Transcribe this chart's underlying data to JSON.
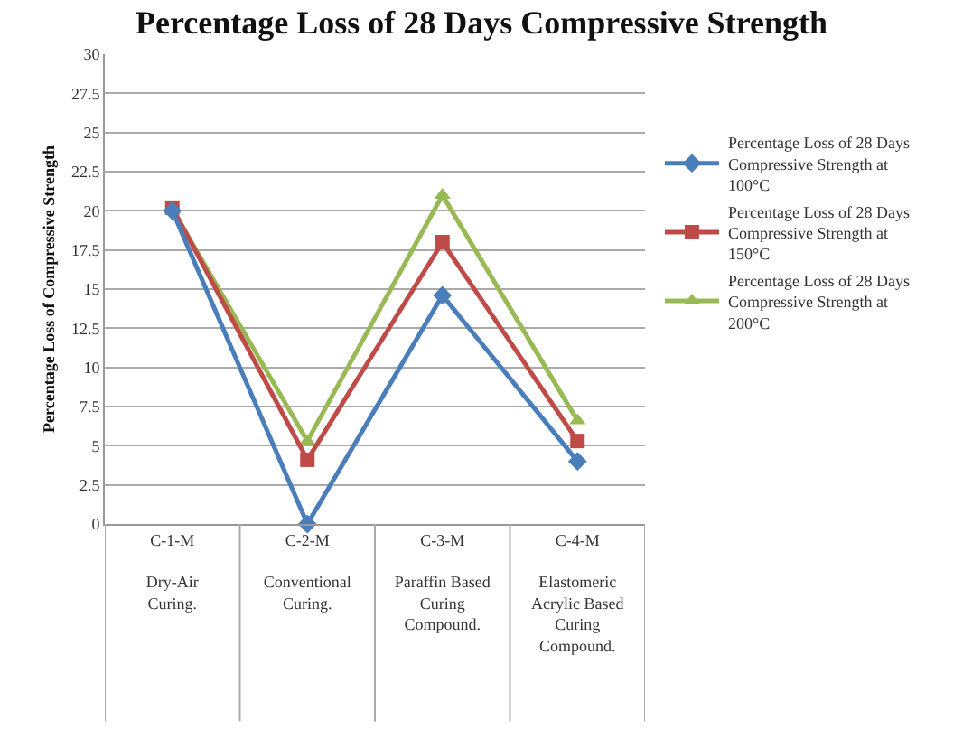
{
  "chart_data": {
    "type": "line",
    "title": "Percentage Loss of 28 Days Compressive Strength",
    "ylabel": "Percentage Loss of Compressive Strength",
    "categories": [
      "C-1-M\n\nDry-Air\nCuring.",
      "C-2-M\n\nConventional\nCuring.",
      "C-3-M\n\nParaffin Based\nCuring\nCompound.",
      "C-4-M\n\nElastomeric\nAcrylic Based\nCuring\nCompound."
    ],
    "series": [
      {
        "name": "Percentage Loss of 28 Days Compressive Strength at 100°C",
        "color": "#4a7ebb",
        "marker": "diamond",
        "values": [
          20,
          0,
          14.6,
          4
        ]
      },
      {
        "name": "Percentage Loss of 28 Days Compressive Strength at 150°C",
        "color": "#be4b48",
        "marker": "square",
        "values": [
          20.2,
          4.1,
          18,
          5.3
        ]
      },
      {
        "name": "Percentage Loss of 28 Days Compressive Strength at 200°C",
        "color": "#98b954",
        "marker": "triangle",
        "values": [
          20.1,
          5.3,
          21,
          6.6
        ]
      }
    ],
    "ylim": [
      0,
      30
    ],
    "yticks": [
      0,
      2.5,
      5,
      7.5,
      10,
      12.5,
      15,
      17.5,
      20,
      22.5,
      25,
      27.5,
      30
    ],
    "grid": "y",
    "legend": "right",
    "line_style": "solid"
  }
}
